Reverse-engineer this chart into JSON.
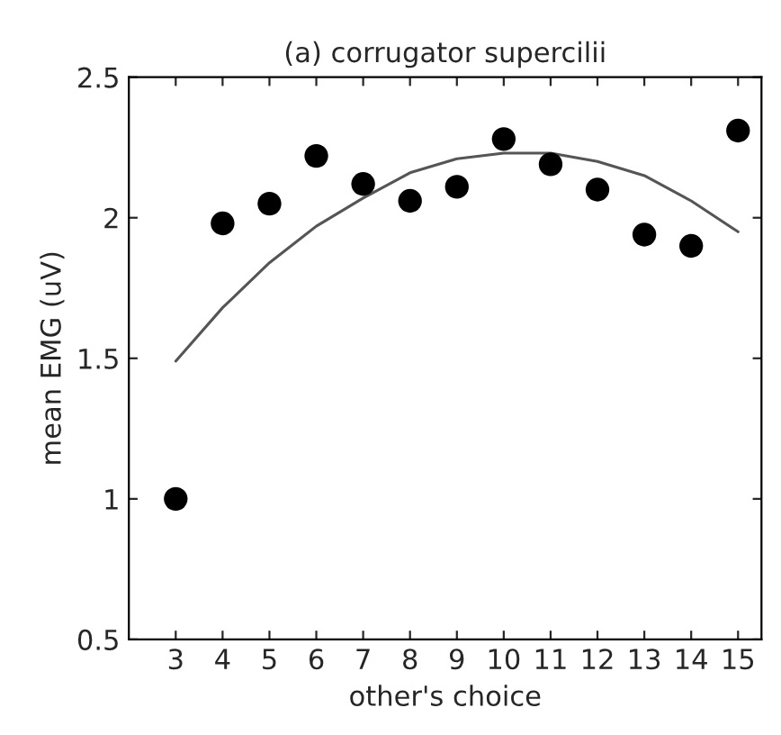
{
  "chart_data": {
    "type": "scatter",
    "title": "(a) corrugator supercilii",
    "xlabel": "other's choice",
    "ylabel": "mean EMG (uV)",
    "x": [
      3,
      4,
      5,
      6,
      7,
      8,
      9,
      10,
      11,
      12,
      13,
      14,
      15
    ],
    "series": [
      {
        "color": "#000000",
        "marker": "circle",
        "values": [
          1.0,
          1.98,
          2.05,
          2.22,
          2.12,
          2.06,
          2.11,
          2.28,
          2.19,
          2.1,
          1.94,
          1.9,
          2.31
        ]
      },
      {
        "type": "line",
        "color": "#555555",
        "line_style": "solid",
        "x": [
          3,
          4,
          5,
          6,
          7,
          8,
          9,
          10,
          11,
          12,
          13,
          14,
          15
        ],
        "values": [
          1.49,
          1.68,
          1.84,
          1.97,
          2.07,
          2.16,
          2.21,
          2.23,
          2.23,
          2.2,
          2.15,
          2.06,
          1.95
        ]
      }
    ],
    "xlim": [
      2,
      15.5
    ],
    "xticks": [
      3,
      4,
      5,
      6,
      7,
      8,
      9,
      10,
      11,
      12,
      13,
      14,
      15
    ],
    "ylim": [
      0.5,
      2.5
    ],
    "yticks": [
      0.5,
      1,
      1.5,
      2,
      2.5
    ],
    "grid": false,
    "legend": false
  }
}
